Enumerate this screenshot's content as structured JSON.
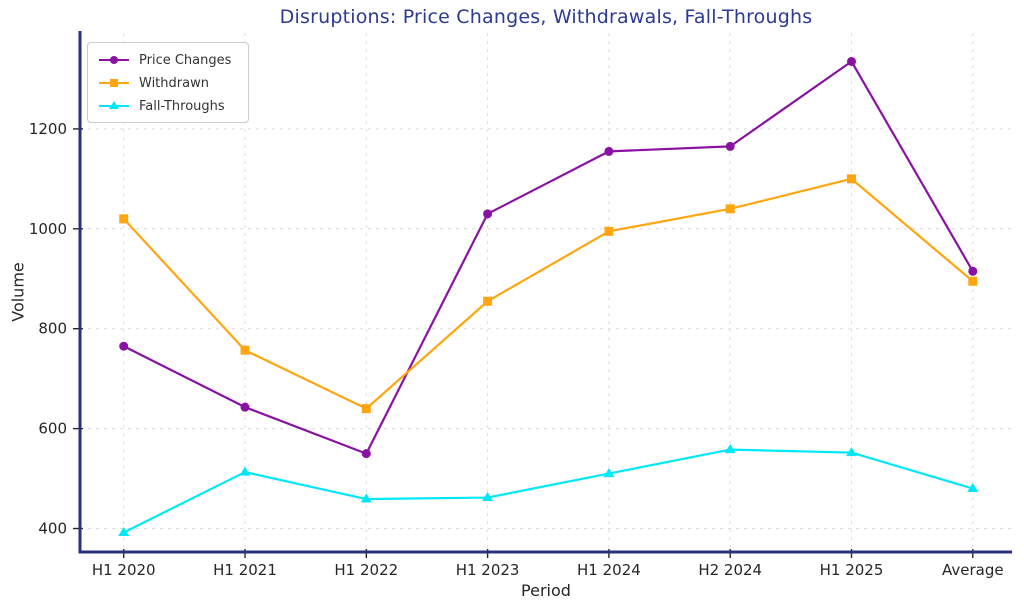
{
  "chart_data": {
    "type": "line",
    "title": "Disruptions: Price Changes, Withdrawals, Fall-Throughs",
    "xlabel": "Period",
    "ylabel": "Volume",
    "categories": [
      "H1 2020",
      "H1 2021",
      "H1 2022",
      "H1 2023",
      "H1 2024",
      "H2 2024",
      "H1 2025",
      "Average"
    ],
    "series": [
      {
        "name": "Price Changes",
        "marker": "circle",
        "color": "#8a12a3",
        "values": [
          765,
          643,
          550,
          1030,
          1155,
          1165,
          1335,
          915
        ]
      },
      {
        "name": "Withdrawn",
        "marker": "square",
        "color": "#ffa510",
        "values": [
          1020,
          757,
          640,
          855,
          995,
          1040,
          1100,
          895
        ]
      },
      {
        "name": "Fall-Throughs",
        "marker": "triangle",
        "color": "#00e8f7",
        "values": [
          392,
          513,
          459,
          462,
          510,
          558,
          552,
          480
        ]
      }
    ],
    "yticks": [
      400,
      600,
      800,
      1000,
      1200
    ],
    "ylim": [
      353,
      1392
    ],
    "grid": true,
    "grid_style": "dashed",
    "legend_position": "upper left",
    "colors": {
      "title": "#2b3a94",
      "spine": "#283180",
      "grid": "#dcdcdc",
      "tick_text": "#262626",
      "legend_text": "#333333",
      "background": "#ffffff"
    }
  }
}
